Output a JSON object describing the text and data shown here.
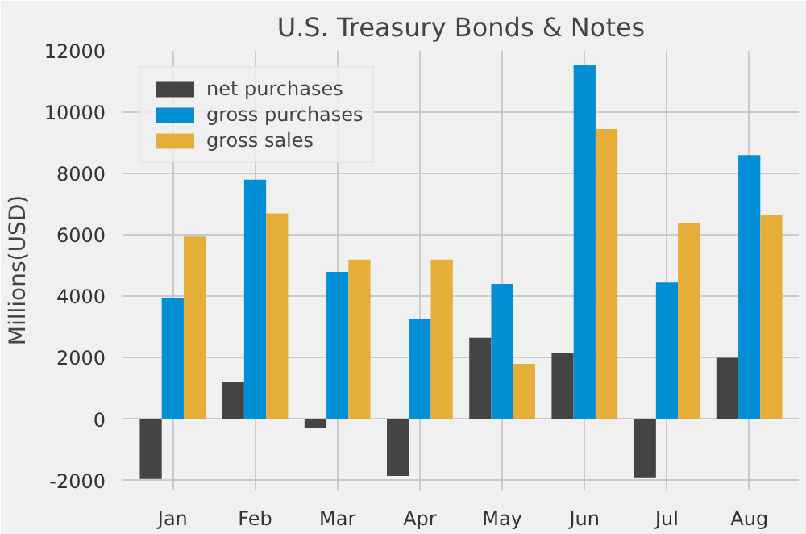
{
  "chart_data": {
    "type": "bar",
    "title": "U.S. Treasury Bonds & Notes",
    "ylabel": "Millions(USD)",
    "categories": [
      "Jan",
      "Feb",
      "Mar",
      "Apr",
      "May",
      "Jun",
      "Jul",
      "Aug"
    ],
    "series": [
      {
        "name": "net purchases",
        "color": "#444444",
        "values": [
          -1950,
          1200,
          -300,
          -1850,
          2650,
          2150,
          -1900,
          2000
        ]
      },
      {
        "name": "gross purchases",
        "color": "#008fd5",
        "values": [
          3950,
          7800,
          4800,
          3250,
          4400,
          11550,
          4450,
          8600
        ]
      },
      {
        "name": "gross sales",
        "color": "#e5ae38",
        "values": [
          5950,
          6700,
          5200,
          5200,
          1800,
          9450,
          6400,
          6650
        ]
      }
    ],
    "ylim": [
      -2300,
      12000
    ],
    "yticks": [
      -2000,
      0,
      2000,
      4000,
      6000,
      8000,
      10000,
      12000
    ],
    "grid": true,
    "legend": "top left"
  }
}
